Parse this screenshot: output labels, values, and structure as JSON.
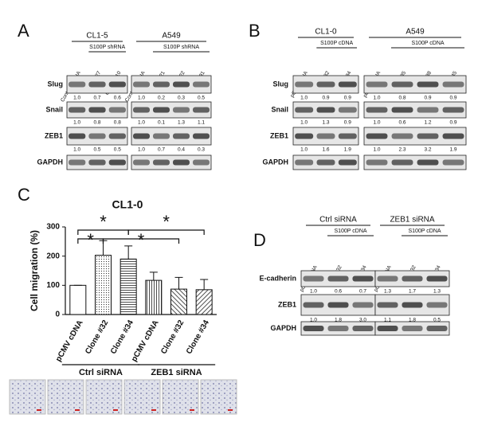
{
  "panels": {
    "A": {
      "label": "A",
      "groups": [
        {
          "name": "CL1-5",
          "treatment": "S100P shRNA",
          "lanes": [
            "Control shRNA",
            "Clone #27",
            "Clone #410"
          ]
        },
        {
          "name": "A549",
          "treatment": "S100P shRNA",
          "lanes": [
            "Control shRNA",
            "Clone #21",
            "Clone #22",
            "Clone #31"
          ]
        }
      ],
      "rows": [
        {
          "name": "Slug",
          "values": [
            [
              "1.0",
              "0.7",
              "0.6"
            ],
            [
              "1.0",
              "0.2",
              "0.3",
              "0.5"
            ]
          ]
        },
        {
          "name": "Snail",
          "values": [
            [
              "1.0",
              "0.8",
              "0.8"
            ],
            [
              "1.0",
              "0.1",
              "1.3",
              "1.1"
            ]
          ]
        },
        {
          "name": "ZEB1",
          "values": [
            [
              "1.0",
              "0.5",
              "0.5"
            ],
            [
              "1.0",
              "0.7",
              "0.4",
              "0.3"
            ]
          ]
        },
        {
          "name": "GAPDH"
        }
      ]
    },
    "B": {
      "label": "B",
      "groups": [
        {
          "name": "CL1-0",
          "treatment": "S100P cDNA",
          "lanes": [
            "pCMV cDNA",
            "Clone #32",
            "Clone #34"
          ]
        },
        {
          "name": "A549",
          "treatment": "S100P cDNA",
          "lanes": [
            "pCMV cDNA",
            "Clone #35",
            "Clone #38",
            "Clone #45"
          ]
        }
      ],
      "rows": [
        {
          "name": "Slug",
          "values": [
            [
              "1.0",
              "0.9",
              "0.9"
            ],
            [
              "1.0",
              "0.8",
              "0.9",
              "0.9"
            ]
          ]
        },
        {
          "name": "Snail",
          "values": [
            [
              "1.0",
              "1.3",
              "0.9"
            ],
            [
              "1.0",
              "0.6",
              "1.2",
              "0.9"
            ]
          ]
        },
        {
          "name": "ZEB1",
          "values": [
            [
              "1.0",
              "1.6",
              "1.9"
            ],
            [
              "1.0",
              "2.3",
              "3.2",
              "1.9"
            ]
          ]
        },
        {
          "name": "GAPDH"
        }
      ]
    },
    "D": {
      "label": "D",
      "groups": [
        {
          "name": "Ctrl siRNA",
          "treatment": "S100P cDNA",
          "lanes": [
            "pCMV cDNA",
            "Clone #32",
            "Clone #34"
          ]
        },
        {
          "name": "ZEB1 siRNA",
          "treatment": "S100P cDNA",
          "lanes": [
            "pCMV cDNA",
            "Clone #32",
            "Clone #34"
          ]
        }
      ],
      "rows": [
        {
          "name": "E-cadherin",
          "values": [
            [
              "1.0",
              "0.6",
              "0.7"
            ],
            [
              "1.3",
              "1.7",
              "1.3"
            ]
          ]
        },
        {
          "name": "ZEB1",
          "values": [
            [
              "1.0",
              "1.8",
              "3.0"
            ],
            [
              "1.1",
              "1.8",
              "0.5"
            ]
          ]
        },
        {
          "name": "GAPDH"
        }
      ]
    }
  },
  "chart_data": {
    "type": "bar",
    "label": "C",
    "title": "CL1-0",
    "y_label": "Cell migration (%)",
    "categories": [
      "pCMV cDNA",
      "Clone #32",
      "Clone #34",
      "pCMV cDNA",
      "Clone #32",
      "Clone #34"
    ],
    "groups": [
      "Ctrl siRNA",
      "ZEB1 siRNA"
    ],
    "values": [
      100,
      203,
      190,
      117,
      87,
      85
    ],
    "errors": [
      0,
      50,
      45,
      28,
      40,
      35
    ],
    "ylim": [
      0,
      300
    ],
    "yticks": [
      0,
      100,
      200,
      300
    ],
    "annotations": [
      "*",
      "*",
      "*",
      "*"
    ]
  }
}
